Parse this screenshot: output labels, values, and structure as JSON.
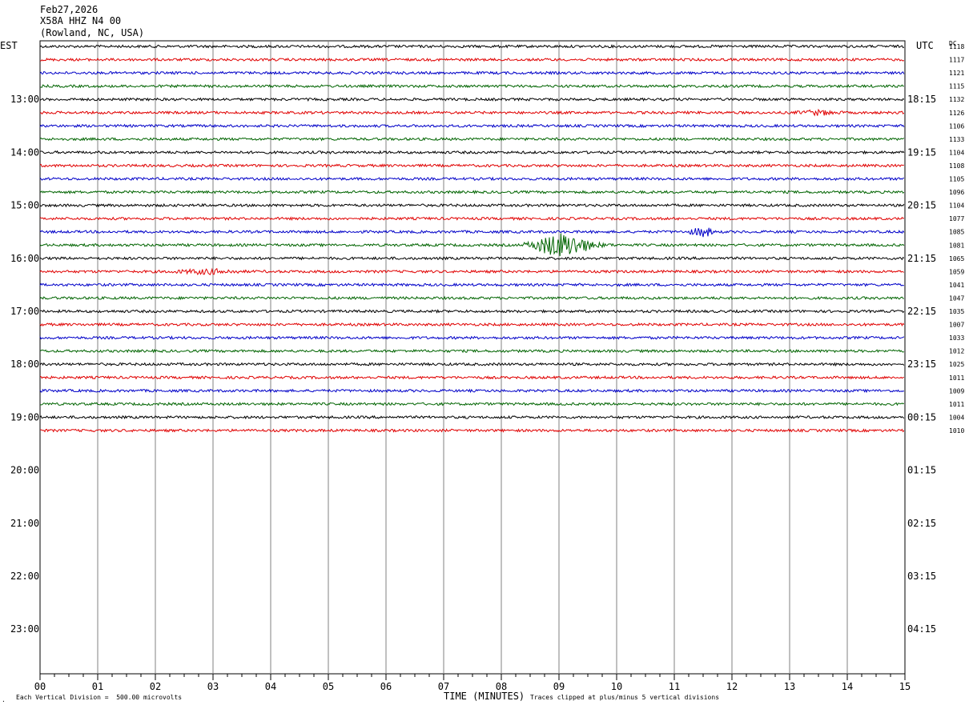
{
  "header": {
    "date": "Feb27,2026",
    "station": "X58A HHZ N4 00",
    "location": "(Rowland, NC, USA)"
  },
  "axis_labels": {
    "left_zone": "EST",
    "right_zone": "UTC",
    "dc_label": "DC",
    "x_axis_title": "TIME (MINUTES)"
  },
  "footer": {
    "scale_note": "Each Vertical Division =  500.00 microvolts",
    "clip_note": "Traces clipped at plus/minus 5 vertical divisions"
  },
  "colors": {
    "trace_cycle": [
      "#000000",
      "#e00000",
      "#0000c8",
      "#006400"
    ],
    "grid": "#808080"
  },
  "chart_data": {
    "type": "line",
    "title": "X58A HHZ N4 00",
    "xlabel": "TIME (MINUTES)",
    "xlim": [
      0,
      15
    ],
    "x_ticks": [
      "00",
      "01",
      "02",
      "03",
      "04",
      "05",
      "06",
      "07",
      "08",
      "09",
      "10",
      "11",
      "12",
      "13",
      "14",
      "15"
    ],
    "hour_labels_est": [
      "13:00",
      "14:00",
      "15:00",
      "16:00",
      "17:00",
      "18:00",
      "19:00",
      "20:00",
      "21:00",
      "22:00",
      "23:00"
    ],
    "hour_labels_utc": [
      "18:15",
      "19:15",
      "20:15",
      "21:15",
      "22:15",
      "23:15",
      "00:15",
      "01:15",
      "02:15",
      "03:15",
      "04:15"
    ],
    "dc_offsets": [
      1118,
      1117,
      1121,
      1115,
      1132,
      1126,
      1106,
      1133,
      1104,
      1108,
      1105,
      1096,
      1104,
      1077,
      1085,
      1081,
      1065,
      1059,
      1041,
      1047,
      1035,
      1007,
      1033,
      1012,
      1025,
      1011,
      1009,
      1011,
      1004,
      1010
    ],
    "events": [
      {
        "trace": 15,
        "start_min": 8.4,
        "end_min": 10.0,
        "peak_min": 9.05,
        "amplitude": "large"
      },
      {
        "trace": 14,
        "start_min": 11.0,
        "end_min": 11.7,
        "peak_min": 11.5,
        "amplitude": "medium"
      },
      {
        "trace": 17,
        "start_min": 2.0,
        "end_min": 3.6,
        "peak_min": 2.9,
        "amplitude": "small"
      },
      {
        "trace": 5,
        "start_min": 13.0,
        "end_min": 14.0,
        "peak_min": 13.5,
        "amplitude": "small"
      }
    ]
  }
}
